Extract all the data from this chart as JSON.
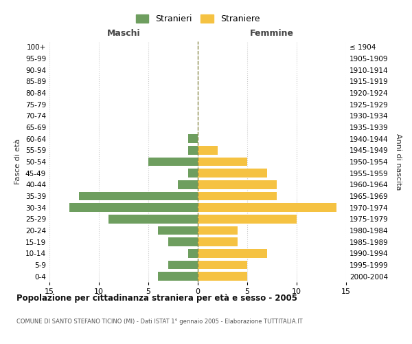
{
  "age_groups": [
    "0-4",
    "5-9",
    "10-14",
    "15-19",
    "20-24",
    "25-29",
    "30-34",
    "35-39",
    "40-44",
    "45-49",
    "50-54",
    "55-59",
    "60-64",
    "65-69",
    "70-74",
    "75-79",
    "80-84",
    "85-89",
    "90-94",
    "95-99",
    "100+"
  ],
  "birth_years": [
    "2000-2004",
    "1995-1999",
    "1990-1994",
    "1985-1989",
    "1980-1984",
    "1975-1979",
    "1970-1974",
    "1965-1969",
    "1960-1964",
    "1955-1959",
    "1950-1954",
    "1945-1949",
    "1940-1944",
    "1935-1939",
    "1930-1934",
    "1925-1929",
    "1920-1924",
    "1915-1919",
    "1910-1914",
    "1905-1909",
    "≤ 1904"
  ],
  "males": [
    4,
    3,
    1,
    3,
    4,
    9,
    13,
    12,
    2,
    1,
    5,
    1,
    1,
    0,
    0,
    0,
    0,
    0,
    0,
    0,
    0
  ],
  "females": [
    5,
    5,
    7,
    4,
    4,
    10,
    14,
    8,
    8,
    7,
    5,
    2,
    0,
    0,
    0,
    0,
    0,
    0,
    0,
    0,
    0
  ],
  "male_color": "#6e9e5f",
  "female_color": "#f5c242",
  "center_line_color": "#8b8b4a",
  "grid_color": "#cccccc",
  "background_color": "#ffffff",
  "title": "Popolazione per cittadinanza straniera per età e sesso - 2005",
  "subtitle": "COMUNE DI SANTO STEFANO TICINO (MI) - Dati ISTAT 1° gennaio 2005 - Elaborazione TUTTITALIA.IT",
  "xlabel_left": "Maschi",
  "xlabel_right": "Femmine",
  "ylabel_left": "Fasce di età",
  "ylabel_right": "Anni di nascita",
  "legend_male": "Stranieri",
  "legend_female": "Straniere",
  "xlim": 15
}
